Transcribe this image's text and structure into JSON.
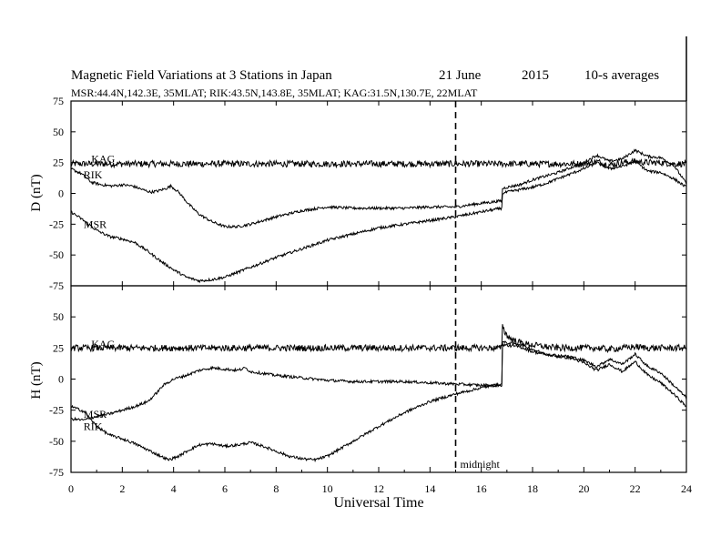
{
  "chart_data": {
    "type": "line",
    "title": "Magnetic Field Variations at 3 Stations in Japan",
    "date": "21 June",
    "year": "2015",
    "averaging": "10-s averages",
    "subtitle": "MSR:44.4N,142.3E, 35MLAT;  RIK:43.5N,143.8E, 35MLAT;  KAG:31.5N,130.7E, 22MLAT",
    "xlabel": "Universal Time",
    "xlim": [
      0,
      24
    ],
    "xticks": [
      0,
      2,
      4,
      6,
      8,
      10,
      12,
      14,
      16,
      18,
      20,
      22,
      24
    ],
    "xtick_labels": [
      "0",
      "2",
      "4",
      "6",
      "8",
      "10",
      "12",
      "14",
      "16",
      "18",
      "20",
      "22",
      "24"
    ],
    "midnight_x": 15,
    "midnight_label": "midnight",
    "panels": [
      {
        "ylabel": "D (nT)",
        "ylim": [
          -75,
          75
        ],
        "yticks": [
          -75,
          -50,
          -25,
          0,
          25,
          50,
          75
        ],
        "ytick_labels": [
          "-75",
          "-50",
          "-25",
          "0",
          "25",
          "50",
          "75"
        ],
        "series": [
          {
            "name": "KAG",
            "label_pos": [
              1.5,
              28
            ],
            "x": [
              0,
              2,
              4,
              6,
              8,
              10,
              12,
              14,
              16,
              17,
              18,
              19,
              20,
              20.5,
              21,
              21.5,
              22,
              22.5,
              23,
              23.5,
              24
            ],
            "values": [
              24,
              24,
              24,
              24,
              24,
              24,
              24,
              24,
              24,
              24,
              24,
              24,
              24,
              26,
              23,
              25,
              26,
              25,
              25,
              24,
              24
            ]
          },
          {
            "name": "RIK",
            "label_pos": [
              1.2,
              15
            ],
            "x": [
              0,
              0.4,
              0.8,
              1.2,
              1.6,
              2.0,
              2.4,
              2.8,
              3.1,
              3.4,
              3.7,
              3.9,
              4.2,
              4.6,
              5.0,
              5.5,
              6.0,
              6.5,
              7,
              8,
              9,
              10,
              11,
              12,
              13,
              14,
              15,
              16,
              16.8,
              16.81,
              17,
              17.5,
              18,
              18.5,
              19,
              19.5,
              20,
              20.5,
              21,
              21.5,
              22,
              22.5,
              23,
              23.5,
              24
            ],
            "values": [
              20,
              16,
              9,
              7,
              6,
              7,
              6,
              3,
              1,
              2,
              4,
              6,
              1,
              -9,
              -17,
              -23,
              -27,
              -27,
              -25,
              -19,
              -14,
              -11,
              -12,
              -12,
              -12,
              -11,
              -11,
              -8,
              -6,
              4,
              5,
              7,
              11,
              14,
              17,
              21,
              25,
              31,
              26,
              28,
              35,
              30,
              29,
              23,
              8
            ]
          },
          {
            "name": "MSR",
            "label_pos": [
              1.2,
              -25
            ],
            "x": [
              0,
              0.5,
              1.0,
              1.5,
              2.0,
              2.5,
              3.0,
              3.5,
              4.0,
              4.5,
              5.0,
              5.5,
              6.0,
              7,
              8,
              9,
              10,
              11,
              12,
              13,
              14,
              15,
              16,
              16.8,
              16.81,
              17,
              17.5,
              18,
              18.5,
              19,
              19.5,
              20,
              20.5,
              21,
              21.5,
              22,
              22.5,
              23,
              23.5,
              24
            ],
            "values": [
              -15,
              -22,
              -30,
              -35,
              -37,
              -40,
              -47,
              -55,
              -62,
              -68,
              -71,
              -70,
              -68,
              -60,
              -52,
              -45,
              -38,
              -33,
              -28,
              -25,
              -22,
              -19,
              -15,
              -12,
              0,
              1,
              3,
              5,
              8,
              12,
              16,
              20,
              25,
              20,
              22,
              26,
              18,
              17,
              12,
              5
            ]
          }
        ]
      },
      {
        "ylabel": "H (nT)",
        "ylim": [
          -75,
          75
        ],
        "yticks": [
          -75,
          -50,
          -25,
          0,
          25,
          50
        ],
        "ytick_labels": [
          "-75",
          "-50",
          "-25",
          "0",
          "25",
          "50"
        ],
        "series": [
          {
            "name": "KAG",
            "label_pos": [
              1.5,
              28
            ],
            "x": [
              0,
              2,
              4,
              6,
              8,
              10,
              12,
              14,
              16,
              16.8,
              16.81,
              16.9,
              17.1,
              17.4,
              17.8,
              18.5,
              19,
              19.5,
              20,
              20.5,
              21,
              21.5,
              22,
              22.5,
              23,
              23.5,
              24
            ],
            "values": [
              25,
              25,
              25,
              25,
              25,
              25,
              25,
              25,
              25,
              25,
              47,
              38,
              33,
              30,
              28,
              26,
              25,
              25,
              25,
              25,
              24,
              25,
              26,
              25,
              25,
              25,
              25
            ]
          },
          {
            "name": "MSR",
            "label_pos": [
              1.2,
              -28
            ],
            "x": [
              0,
              0.5,
              1.0,
              1.5,
              2.0,
              2.5,
              3.0,
              3.3,
              3.6,
              4.0,
              4.5,
              5.0,
              5.5,
              6.0,
              6.5,
              6.8,
              7.0,
              8,
              9,
              10,
              11,
              12,
              13,
              14,
              15,
              16,
              16.8,
              16.81,
              17,
              17.5,
              18,
              18.5,
              19,
              19.5,
              20,
              20.5,
              21,
              21.5,
              22,
              22.5,
              23,
              23.5,
              24
            ],
            "values": [
              -32,
              -33,
              -30,
              -28,
              -25,
              -22,
              -18,
              -12,
              -5,
              0,
              3,
              7,
              9,
              8,
              7,
              9,
              6,
              3,
              1,
              -1,
              -2,
              -2,
              -2,
              -3,
              -4,
              -5,
              -5,
              30,
              29,
              28,
              24,
              20,
              19,
              18,
              15,
              10,
              16,
              12,
              20,
              10,
              5,
              -5,
              -15
            ]
          },
          {
            "name": "RIK",
            "label_pos": [
              1.2,
              -38
            ],
            "x": [
              0,
              0.5,
              1.0,
              1.5,
              2.0,
              2.5,
              3.0,
              3.5,
              3.8,
              4.2,
              4.6,
              5.0,
              5.5,
              6.0,
              6.5,
              7.0,
              7.5,
              8.0,
              8.5,
              9.0,
              9.5,
              10,
              11,
              12,
              13,
              14,
              15,
              16,
              16.8,
              16.81,
              17,
              17.5,
              18,
              18.5,
              19,
              19.5,
              20,
              20.5,
              21,
              21.5,
              22,
              22.5,
              23,
              23.5,
              24
            ],
            "values": [
              -22,
              -26,
              -38,
              -45,
              -48,
              -52,
              -57,
              -62,
              -65,
              -62,
              -57,
              -53,
              -52,
              -54,
              -53,
              -51,
              -54,
              -58,
              -62,
              -64,
              -65,
              -62,
              -50,
              -38,
              -27,
              -18,
              -12,
              -7,
              -4,
              28,
              27,
              26,
              22,
              20,
              18,
              17,
              13,
              7,
              12,
              6,
              14,
              3,
              -3,
              -12,
              -22
            ]
          }
        ]
      }
    ]
  },
  "frame": {
    "right_divider": true
  }
}
